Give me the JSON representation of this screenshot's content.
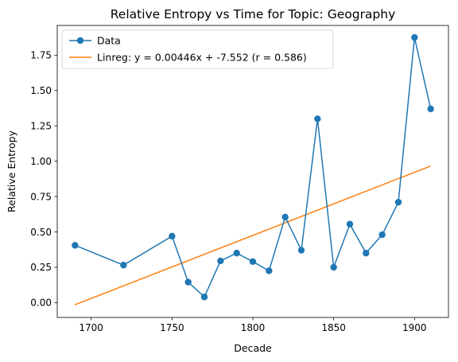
{
  "chart_data": {
    "type": "line",
    "title": "Relative Entropy vs Time for Topic: Geography",
    "xlabel": "Decade",
    "ylabel": "Relative Entropy",
    "xlim": [
      1679,
      1921
    ],
    "ylim": [
      -0.105,
      1.96
    ],
    "xticks": [
      1700,
      1750,
      1800,
      1850,
      1900
    ],
    "yticks": [
      0.0,
      0.25,
      0.5,
      0.75,
      1.0,
      1.25,
      1.5,
      1.75
    ],
    "grid": false,
    "legend_position": "top-left",
    "series": [
      {
        "name": "Data",
        "color": "#1f77b4",
        "marker": "circle",
        "x": [
          1690,
          1720,
          1750,
          1760,
          1770,
          1780,
          1790,
          1800,
          1810,
          1820,
          1830,
          1840,
          1850,
          1860,
          1870,
          1880,
          1890,
          1900,
          1910
        ],
        "y": [
          0.405,
          0.265,
          0.47,
          0.145,
          0.04,
          0.295,
          0.35,
          0.29,
          0.225,
          0.605,
          0.37,
          1.3,
          0.25,
          0.555,
          0.35,
          0.48,
          0.71,
          1.875,
          1.37
        ]
      },
      {
        "name": "Linreg: y = 0.00446x + -7.552 (r = 0.586)",
        "color": "#ff7f0e",
        "marker": "none",
        "slope": 0.00446,
        "intercept": -7.552,
        "x": [
          1690,
          1910
        ],
        "y": [
          -0.015,
          0.966
        ]
      }
    ]
  }
}
